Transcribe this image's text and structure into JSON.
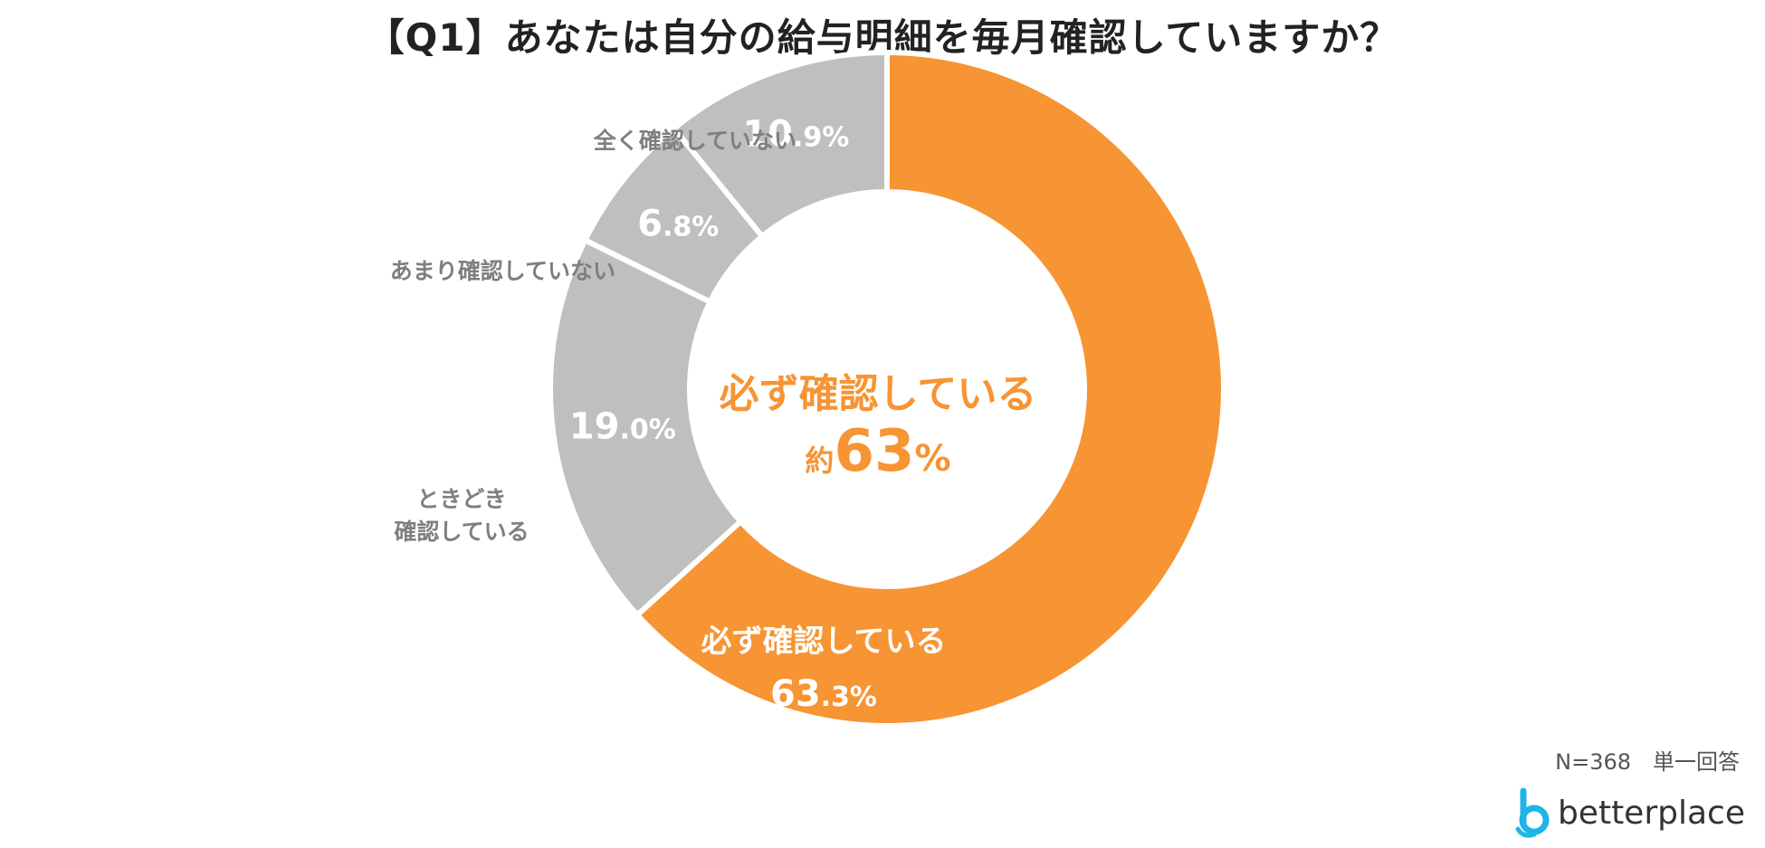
{
  "title": "【Q1】あなたは自分の給与明細を毎月確認していますか？",
  "chart_data": {
    "type": "pie",
    "variant": "donut",
    "start_angle_deg": 0,
    "direction": "clockwise",
    "slices": [
      {
        "label_lines": [
          "必ず確認している"
        ],
        "value": 63.3,
        "int": "63",
        "dec": ".3%",
        "color": "#f79433",
        "label_position": "inside"
      },
      {
        "label_lines": [
          "ときどき",
          "確認している"
        ],
        "value": 19.0,
        "int": "19",
        "dec": ".0%",
        "color": "#bfbfbf",
        "label_position": "outside-left"
      },
      {
        "label_lines": [
          "あまり確認していない"
        ],
        "value": 6.8,
        "int": "6",
        "dec": ".8%",
        "color": "#bfbfbf",
        "label_position": "outside-left"
      },
      {
        "label_lines": [
          "全く確認していない"
        ],
        "value": 10.9,
        "int": "10",
        "dec": ".9%",
        "color": "#bfbfbf",
        "label_position": "outside-left"
      }
    ],
    "center_text": {
      "line1": "必ず確認している",
      "prefix": "約",
      "number": "63",
      "suffix": "%"
    }
  },
  "footer": {
    "sample": "N=368　単一回答"
  },
  "logo": {
    "text": "betterplace",
    "icon": "betterplace-logo-icon",
    "color": "#1fb5e6"
  }
}
